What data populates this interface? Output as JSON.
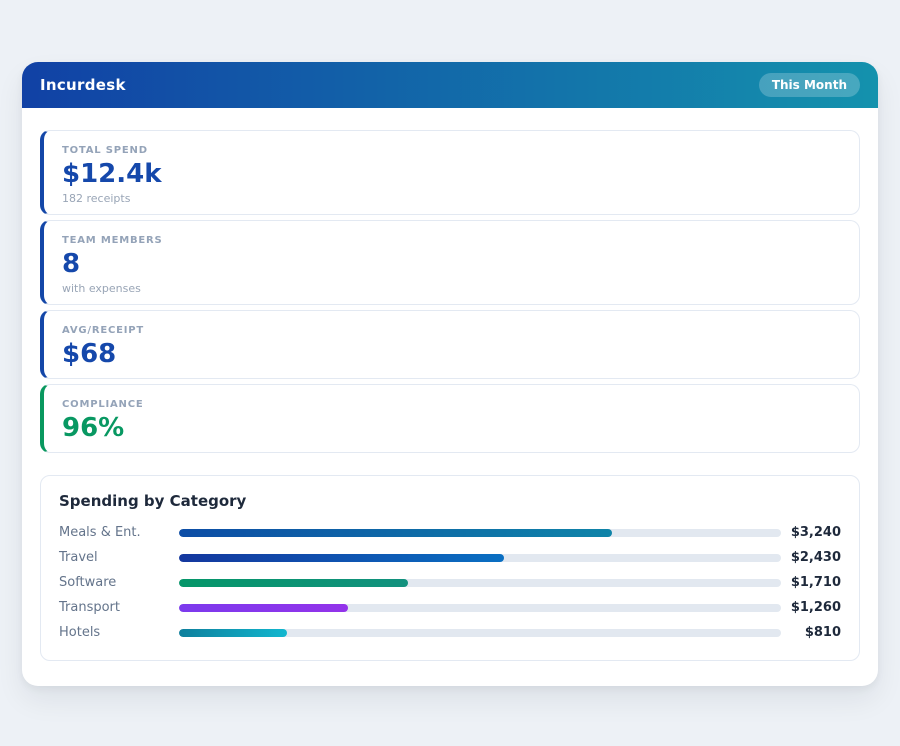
{
  "app": {
    "title": "Incurdesk",
    "period_badge": "This Month"
  },
  "colors": {
    "page_bg": "#edf1f6",
    "header_gradient_left": "#1141a5",
    "header_gradient_right": "#1492ad",
    "stat_value_blue": "#1548ab",
    "stat_value_green": "#089862",
    "label_gray": "#94a3b8",
    "bar_track": "#e2e8f0"
  },
  "stats": [
    {
      "label": "TOTAL SPEND",
      "value": "$12.4k",
      "sub": "182 receipts",
      "accent": "#1447a8",
      "value_color": "#1548ab",
      "size": "tall"
    },
    {
      "label": "TEAM MEMBERS",
      "value": "8",
      "sub": "with expenses",
      "accent": "#1447a8",
      "value_color": "#1548ab",
      "size": "tall"
    },
    {
      "label": "AVG/RECEIPT",
      "value": "$68",
      "sub": "",
      "accent": "#1447a8",
      "value_color": "#1548ab",
      "size": "short"
    },
    {
      "label": "COMPLIANCE",
      "value": "96%",
      "sub": "",
      "accent": "#09985f",
      "value_color": "#089862",
      "size": "short"
    }
  ],
  "chart_data": {
    "type": "bar",
    "orientation": "horizontal",
    "title": "Spending by Category",
    "categories": [
      "Meals & Ent.",
      "Travel",
      "Software",
      "Transport",
      "Hotels"
    ],
    "values": [
      3240,
      2430,
      1710,
      1260,
      810
    ],
    "value_labels": [
      "$3,240",
      "$2,430",
      "$1,710",
      "$1,260",
      "$810"
    ],
    "scale_max": 4500,
    "grid": false,
    "legend": false,
    "bar_gradients": [
      [
        "#0d4da6",
        "#0f84a8"
      ],
      [
        "#14379e",
        "#0a6fc2"
      ],
      [
        "#059669",
        "#12917e"
      ],
      [
        "#7c3aed",
        "#9333ea"
      ],
      [
        "#0e7f9c",
        "#12b7cf"
      ]
    ]
  }
}
